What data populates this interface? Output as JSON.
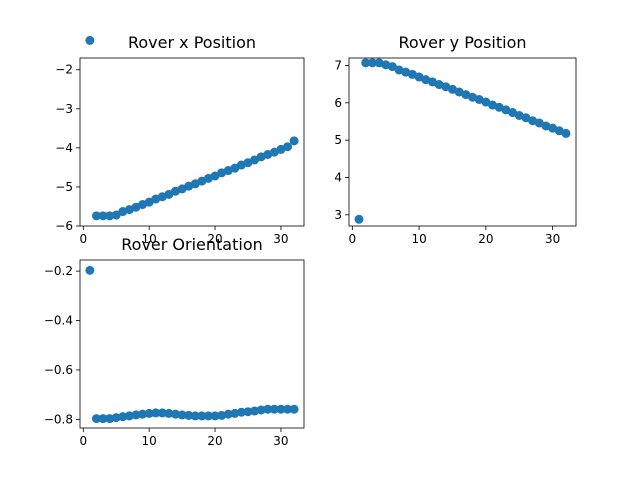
{
  "chart_data": [
    {
      "type": "scatter",
      "title": "Rover x Position",
      "xlabel": "",
      "ylabel": "",
      "xlim": [
        -0.5,
        33.5
      ],
      "ylim": [
        -6.0,
        -1.7
      ],
      "xticks": [
        0,
        10,
        20,
        30
      ],
      "xtick_labels": [
        "0",
        "10",
        "20",
        "30"
      ],
      "yticks": [
        -6,
        -5,
        -4,
        -3,
        -2
      ],
      "ytick_labels": [
        "−6",
        "−5",
        "−4",
        "−3",
        "−2"
      ],
      "grid": false,
      "marker_color": "#1f77b4",
      "x": [
        1,
        2,
        3,
        4,
        5,
        6,
        7,
        8,
        9,
        10,
        11,
        12,
        13,
        14,
        15,
        16,
        17,
        18,
        19,
        20,
        21,
        22,
        23,
        24,
        25,
        26,
        27,
        28,
        29,
        30,
        31,
        32
      ],
      "y": [
        -1.25,
        -5.74,
        -5.74,
        -5.74,
        -5.72,
        -5.63,
        -5.58,
        -5.52,
        -5.45,
        -5.39,
        -5.31,
        -5.25,
        -5.19,
        -5.11,
        -5.05,
        -4.98,
        -4.92,
        -4.85,
        -4.78,
        -4.72,
        -4.64,
        -4.58,
        -4.52,
        -4.44,
        -4.38,
        -4.31,
        -4.23,
        -4.17,
        -4.11,
        -4.04,
        -3.97,
        -3.82
      ]
    },
    {
      "type": "scatter",
      "title": "Rover y Position",
      "xlabel": "",
      "ylabel": "",
      "xlim": [
        -0.5,
        33.5
      ],
      "ylim": [
        2.7,
        7.2
      ],
      "xticks": [
        0,
        10,
        20,
        30
      ],
      "xtick_labels": [
        "0",
        "10",
        "20",
        "30"
      ],
      "yticks": [
        3,
        4,
        5,
        6,
        7
      ],
      "ytick_labels": [
        "3",
        "4",
        "5",
        "6",
        "7"
      ],
      "grid": false,
      "marker_color": "#1f77b4",
      "x": [
        1,
        2,
        3,
        4,
        5,
        6,
        7,
        8,
        9,
        10,
        11,
        12,
        13,
        14,
        15,
        16,
        17,
        18,
        19,
        20,
        21,
        22,
        23,
        24,
        25,
        26,
        27,
        28,
        29,
        30,
        31,
        32
      ],
      "y": [
        2.88,
        7.07,
        7.07,
        7.07,
        7.02,
        6.97,
        6.88,
        6.82,
        6.76,
        6.69,
        6.62,
        6.56,
        6.49,
        6.43,
        6.36,
        6.29,
        6.22,
        6.15,
        6.09,
        6.02,
        5.94,
        5.88,
        5.81,
        5.74,
        5.66,
        5.6,
        5.52,
        5.46,
        5.38,
        5.32,
        5.25,
        5.18
      ]
    },
    {
      "type": "scatter",
      "title": "Rover Orientation",
      "xlabel": "",
      "ylabel": "",
      "xlim": [
        -0.5,
        33.5
      ],
      "ylim": [
        -0.835,
        -0.155
      ],
      "xticks": [
        0,
        10,
        20,
        30
      ],
      "xtick_labels": [
        "0",
        "10",
        "20",
        "30"
      ],
      "yticks": [
        -0.8,
        -0.6,
        -0.4,
        -0.2
      ],
      "ytick_labels": [
        "−0.8",
        "−0.6",
        "−0.4",
        "−0.2"
      ],
      "grid": false,
      "marker_color": "#1f77b4",
      "x": [
        1,
        2,
        3,
        4,
        5,
        6,
        7,
        8,
        9,
        10,
        11,
        12,
        13,
        14,
        15,
        16,
        17,
        18,
        19,
        20,
        21,
        22,
        23,
        24,
        25,
        26,
        27,
        28,
        29,
        30,
        31,
        32
      ],
      "y": [
        -0.197,
        -0.797,
        -0.797,
        -0.797,
        -0.793,
        -0.789,
        -0.786,
        -0.782,
        -0.779,
        -0.776,
        -0.774,
        -0.774,
        -0.776,
        -0.779,
        -0.782,
        -0.784,
        -0.786,
        -0.786,
        -0.786,
        -0.786,
        -0.784,
        -0.779,
        -0.776,
        -0.771,
        -0.769,
        -0.766,
        -0.762,
        -0.759,
        -0.759,
        -0.759,
        -0.759,
        -0.759
      ]
    }
  ]
}
